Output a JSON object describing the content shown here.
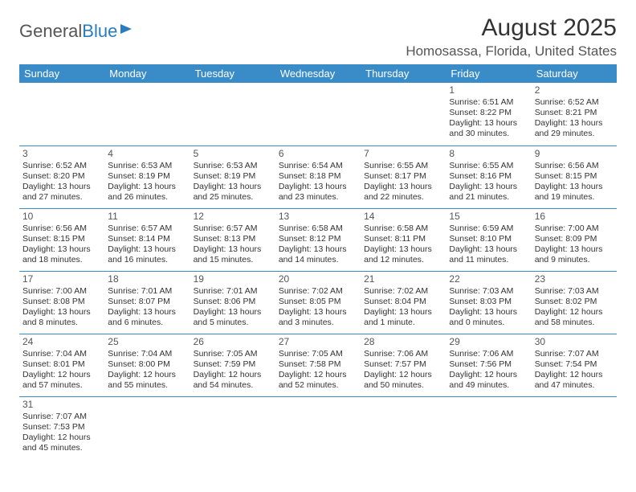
{
  "logo": {
    "text1": "General",
    "text2": "Blue"
  },
  "title": "August 2025",
  "location": "Homosassa, Florida, United States",
  "header_bg": "#3a8cc9",
  "header_fg": "#ffffff",
  "border_color": "#3a8cc9",
  "text_color": "#333333",
  "body_fontsize": 10.5,
  "daynum_color": "#555555",
  "day_headers": [
    "Sunday",
    "Monday",
    "Tuesday",
    "Wednesday",
    "Thursday",
    "Friday",
    "Saturday"
  ],
  "weeks": [
    [
      null,
      null,
      null,
      null,
      null,
      {
        "d": "1",
        "sr": "Sunrise: 6:51 AM",
        "ss": "Sunset: 8:22 PM",
        "dl1": "Daylight: 13 hours",
        "dl2": "and 30 minutes."
      },
      {
        "d": "2",
        "sr": "Sunrise: 6:52 AM",
        "ss": "Sunset: 8:21 PM",
        "dl1": "Daylight: 13 hours",
        "dl2": "and 29 minutes."
      }
    ],
    [
      {
        "d": "3",
        "sr": "Sunrise: 6:52 AM",
        "ss": "Sunset: 8:20 PM",
        "dl1": "Daylight: 13 hours",
        "dl2": "and 27 minutes."
      },
      {
        "d": "4",
        "sr": "Sunrise: 6:53 AM",
        "ss": "Sunset: 8:19 PM",
        "dl1": "Daylight: 13 hours",
        "dl2": "and 26 minutes."
      },
      {
        "d": "5",
        "sr": "Sunrise: 6:53 AM",
        "ss": "Sunset: 8:19 PM",
        "dl1": "Daylight: 13 hours",
        "dl2": "and 25 minutes."
      },
      {
        "d": "6",
        "sr": "Sunrise: 6:54 AM",
        "ss": "Sunset: 8:18 PM",
        "dl1": "Daylight: 13 hours",
        "dl2": "and 23 minutes."
      },
      {
        "d": "7",
        "sr": "Sunrise: 6:55 AM",
        "ss": "Sunset: 8:17 PM",
        "dl1": "Daylight: 13 hours",
        "dl2": "and 22 minutes."
      },
      {
        "d": "8",
        "sr": "Sunrise: 6:55 AM",
        "ss": "Sunset: 8:16 PM",
        "dl1": "Daylight: 13 hours",
        "dl2": "and 21 minutes."
      },
      {
        "d": "9",
        "sr": "Sunrise: 6:56 AM",
        "ss": "Sunset: 8:15 PM",
        "dl1": "Daylight: 13 hours",
        "dl2": "and 19 minutes."
      }
    ],
    [
      {
        "d": "10",
        "sr": "Sunrise: 6:56 AM",
        "ss": "Sunset: 8:15 PM",
        "dl1": "Daylight: 13 hours",
        "dl2": "and 18 minutes."
      },
      {
        "d": "11",
        "sr": "Sunrise: 6:57 AM",
        "ss": "Sunset: 8:14 PM",
        "dl1": "Daylight: 13 hours",
        "dl2": "and 16 minutes."
      },
      {
        "d": "12",
        "sr": "Sunrise: 6:57 AM",
        "ss": "Sunset: 8:13 PM",
        "dl1": "Daylight: 13 hours",
        "dl2": "and 15 minutes."
      },
      {
        "d": "13",
        "sr": "Sunrise: 6:58 AM",
        "ss": "Sunset: 8:12 PM",
        "dl1": "Daylight: 13 hours",
        "dl2": "and 14 minutes."
      },
      {
        "d": "14",
        "sr": "Sunrise: 6:58 AM",
        "ss": "Sunset: 8:11 PM",
        "dl1": "Daylight: 13 hours",
        "dl2": "and 12 minutes."
      },
      {
        "d": "15",
        "sr": "Sunrise: 6:59 AM",
        "ss": "Sunset: 8:10 PM",
        "dl1": "Daylight: 13 hours",
        "dl2": "and 11 minutes."
      },
      {
        "d": "16",
        "sr": "Sunrise: 7:00 AM",
        "ss": "Sunset: 8:09 PM",
        "dl1": "Daylight: 13 hours",
        "dl2": "and 9 minutes."
      }
    ],
    [
      {
        "d": "17",
        "sr": "Sunrise: 7:00 AM",
        "ss": "Sunset: 8:08 PM",
        "dl1": "Daylight: 13 hours",
        "dl2": "and 8 minutes."
      },
      {
        "d": "18",
        "sr": "Sunrise: 7:01 AM",
        "ss": "Sunset: 8:07 PM",
        "dl1": "Daylight: 13 hours",
        "dl2": "and 6 minutes."
      },
      {
        "d": "19",
        "sr": "Sunrise: 7:01 AM",
        "ss": "Sunset: 8:06 PM",
        "dl1": "Daylight: 13 hours",
        "dl2": "and 5 minutes."
      },
      {
        "d": "20",
        "sr": "Sunrise: 7:02 AM",
        "ss": "Sunset: 8:05 PM",
        "dl1": "Daylight: 13 hours",
        "dl2": "and 3 minutes."
      },
      {
        "d": "21",
        "sr": "Sunrise: 7:02 AM",
        "ss": "Sunset: 8:04 PM",
        "dl1": "Daylight: 13 hours",
        "dl2": "and 1 minute."
      },
      {
        "d": "22",
        "sr": "Sunrise: 7:03 AM",
        "ss": "Sunset: 8:03 PM",
        "dl1": "Daylight: 13 hours",
        "dl2": "and 0 minutes."
      },
      {
        "d": "23",
        "sr": "Sunrise: 7:03 AM",
        "ss": "Sunset: 8:02 PM",
        "dl1": "Daylight: 12 hours",
        "dl2": "and 58 minutes."
      }
    ],
    [
      {
        "d": "24",
        "sr": "Sunrise: 7:04 AM",
        "ss": "Sunset: 8:01 PM",
        "dl1": "Daylight: 12 hours",
        "dl2": "and 57 minutes."
      },
      {
        "d": "25",
        "sr": "Sunrise: 7:04 AM",
        "ss": "Sunset: 8:00 PM",
        "dl1": "Daylight: 12 hours",
        "dl2": "and 55 minutes."
      },
      {
        "d": "26",
        "sr": "Sunrise: 7:05 AM",
        "ss": "Sunset: 7:59 PM",
        "dl1": "Daylight: 12 hours",
        "dl2": "and 54 minutes."
      },
      {
        "d": "27",
        "sr": "Sunrise: 7:05 AM",
        "ss": "Sunset: 7:58 PM",
        "dl1": "Daylight: 12 hours",
        "dl2": "and 52 minutes."
      },
      {
        "d": "28",
        "sr": "Sunrise: 7:06 AM",
        "ss": "Sunset: 7:57 PM",
        "dl1": "Daylight: 12 hours",
        "dl2": "and 50 minutes."
      },
      {
        "d": "29",
        "sr": "Sunrise: 7:06 AM",
        "ss": "Sunset: 7:56 PM",
        "dl1": "Daylight: 12 hours",
        "dl2": "and 49 minutes."
      },
      {
        "d": "30",
        "sr": "Sunrise: 7:07 AM",
        "ss": "Sunset: 7:54 PM",
        "dl1": "Daylight: 12 hours",
        "dl2": "and 47 minutes."
      }
    ],
    [
      {
        "d": "31",
        "sr": "Sunrise: 7:07 AM",
        "ss": "Sunset: 7:53 PM",
        "dl1": "Daylight: 12 hours",
        "dl2": "and 45 minutes."
      },
      null,
      null,
      null,
      null,
      null,
      null
    ]
  ]
}
